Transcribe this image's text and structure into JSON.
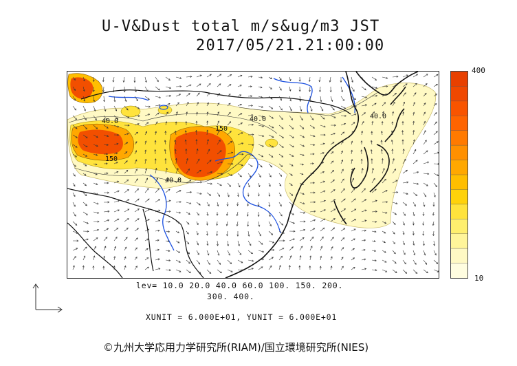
{
  "title": {
    "line1": "U-V&Dust total m/s&ug/m3 JST",
    "line2": "2017/05/21.21:00:00"
  },
  "colorbar": {
    "max_label": "400",
    "min_label": "10",
    "colors": [
      "#fffde0",
      "#fff9c4",
      "#fff59a",
      "#ffef6e",
      "#ffe33c",
      "#ffd20a",
      "#ffbe00",
      "#ffa800",
      "#ff9000",
      "#ff7a00",
      "#ff6400",
      "#f85400",
      "#f04800",
      "#e84000"
    ]
  },
  "legend": {
    "levels_line1": "lev= 10.0 20.0 40.0 60.0 100. 150. 200.",
    "levels_line2": "300. 400.",
    "units": "XUNIT = 6.000E+01, YUNIT = 6.000E+01"
  },
  "contour_labels": [
    "40.0",
    "40.0",
    "40.0",
    "150",
    "150",
    "40.0",
    "40"
  ],
  "credit": "©九州大学応用力学研究所(RIAM)/国立環境研究所(NIES)",
  "map": {
    "region": "East Asia",
    "colors": {
      "coast": "#111111",
      "river": "#1a4fe0",
      "dust_light": "#fff9c4",
      "dust_mid": "#ffd60a",
      "dust_heavy": "#f24f00",
      "wind_vector": "#333333"
    }
  }
}
